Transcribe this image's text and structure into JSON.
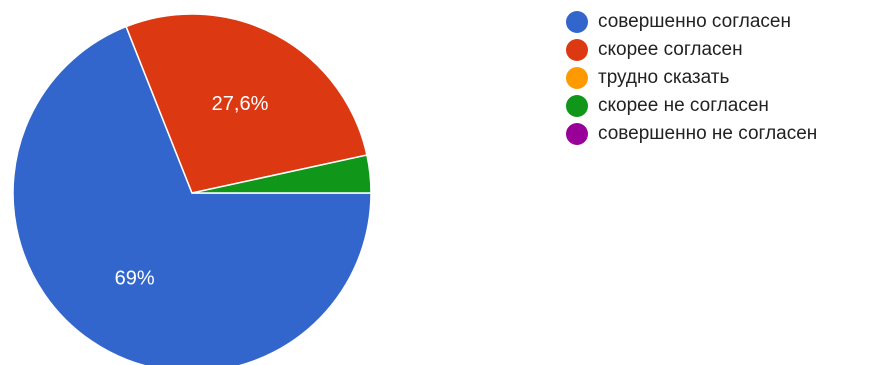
{
  "chart_data": {
    "type": "pie",
    "categories": [
      "совершенно согласен",
      "скорее согласен",
      "трудно сказать",
      "скорее не согласен",
      "совершенно не согласен"
    ],
    "values": [
      69,
      27.6,
      0,
      3.4,
      0
    ],
    "slice_labels": [
      "69%",
      "27,6%",
      "",
      "",
      ""
    ],
    "colors": [
      "#3366cc",
      "#dc3912",
      "#ff9900",
      "#109618",
      "#990099"
    ],
    "legend_position": "right"
  }
}
